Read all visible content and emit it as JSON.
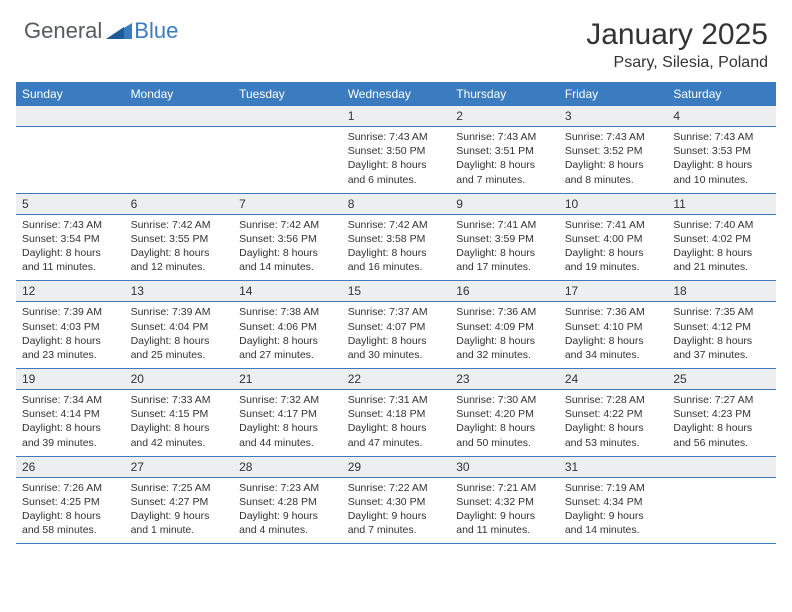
{
  "brand": {
    "part1": "General",
    "part2": "Blue"
  },
  "title": "January 2025",
  "location": "Psary, Silesia, Poland",
  "colors": {
    "header_bg": "#3b7bbf",
    "header_text": "#ffffff",
    "daynum_bg": "#eceeef",
    "text": "#333333",
    "border": "#3b7bbf",
    "page_bg": "#ffffff",
    "logo_gray": "#555b5f",
    "logo_blue": "#3b7bbf"
  },
  "weekdays": [
    "Sunday",
    "Monday",
    "Tuesday",
    "Wednesday",
    "Thursday",
    "Friday",
    "Saturday"
  ],
  "weeks": [
    [
      null,
      null,
      null,
      {
        "n": "1",
        "sr": "7:43 AM",
        "ss": "3:50 PM",
        "dl1": "8 hours",
        "dl2": "and 6 minutes."
      },
      {
        "n": "2",
        "sr": "7:43 AM",
        "ss": "3:51 PM",
        "dl1": "8 hours",
        "dl2": "and 7 minutes."
      },
      {
        "n": "3",
        "sr": "7:43 AM",
        "ss": "3:52 PM",
        "dl1": "8 hours",
        "dl2": "and 8 minutes."
      },
      {
        "n": "4",
        "sr": "7:43 AM",
        "ss": "3:53 PM",
        "dl1": "8 hours",
        "dl2": "and 10 minutes."
      }
    ],
    [
      {
        "n": "5",
        "sr": "7:43 AM",
        "ss": "3:54 PM",
        "dl1": "8 hours",
        "dl2": "and 11 minutes."
      },
      {
        "n": "6",
        "sr": "7:42 AM",
        "ss": "3:55 PM",
        "dl1": "8 hours",
        "dl2": "and 12 minutes."
      },
      {
        "n": "7",
        "sr": "7:42 AM",
        "ss": "3:56 PM",
        "dl1": "8 hours",
        "dl2": "and 14 minutes."
      },
      {
        "n": "8",
        "sr": "7:42 AM",
        "ss": "3:58 PM",
        "dl1": "8 hours",
        "dl2": "and 16 minutes."
      },
      {
        "n": "9",
        "sr": "7:41 AM",
        "ss": "3:59 PM",
        "dl1": "8 hours",
        "dl2": "and 17 minutes."
      },
      {
        "n": "10",
        "sr": "7:41 AM",
        "ss": "4:00 PM",
        "dl1": "8 hours",
        "dl2": "and 19 minutes."
      },
      {
        "n": "11",
        "sr": "7:40 AM",
        "ss": "4:02 PM",
        "dl1": "8 hours",
        "dl2": "and 21 minutes."
      }
    ],
    [
      {
        "n": "12",
        "sr": "7:39 AM",
        "ss": "4:03 PM",
        "dl1": "8 hours",
        "dl2": "and 23 minutes."
      },
      {
        "n": "13",
        "sr": "7:39 AM",
        "ss": "4:04 PM",
        "dl1": "8 hours",
        "dl2": "and 25 minutes."
      },
      {
        "n": "14",
        "sr": "7:38 AM",
        "ss": "4:06 PM",
        "dl1": "8 hours",
        "dl2": "and 27 minutes."
      },
      {
        "n": "15",
        "sr": "7:37 AM",
        "ss": "4:07 PM",
        "dl1": "8 hours",
        "dl2": "and 30 minutes."
      },
      {
        "n": "16",
        "sr": "7:36 AM",
        "ss": "4:09 PM",
        "dl1": "8 hours",
        "dl2": "and 32 minutes."
      },
      {
        "n": "17",
        "sr": "7:36 AM",
        "ss": "4:10 PM",
        "dl1": "8 hours",
        "dl2": "and 34 minutes."
      },
      {
        "n": "18",
        "sr": "7:35 AM",
        "ss": "4:12 PM",
        "dl1": "8 hours",
        "dl2": "and 37 minutes."
      }
    ],
    [
      {
        "n": "19",
        "sr": "7:34 AM",
        "ss": "4:14 PM",
        "dl1": "8 hours",
        "dl2": "and 39 minutes."
      },
      {
        "n": "20",
        "sr": "7:33 AM",
        "ss": "4:15 PM",
        "dl1": "8 hours",
        "dl2": "and 42 minutes."
      },
      {
        "n": "21",
        "sr": "7:32 AM",
        "ss": "4:17 PM",
        "dl1": "8 hours",
        "dl2": "and 44 minutes."
      },
      {
        "n": "22",
        "sr": "7:31 AM",
        "ss": "4:18 PM",
        "dl1": "8 hours",
        "dl2": "and 47 minutes."
      },
      {
        "n": "23",
        "sr": "7:30 AM",
        "ss": "4:20 PM",
        "dl1": "8 hours",
        "dl2": "and 50 minutes."
      },
      {
        "n": "24",
        "sr": "7:28 AM",
        "ss": "4:22 PM",
        "dl1": "8 hours",
        "dl2": "and 53 minutes."
      },
      {
        "n": "25",
        "sr": "7:27 AM",
        "ss": "4:23 PM",
        "dl1": "8 hours",
        "dl2": "and 56 minutes."
      }
    ],
    [
      {
        "n": "26",
        "sr": "7:26 AM",
        "ss": "4:25 PM",
        "dl1": "8 hours",
        "dl2": "and 58 minutes."
      },
      {
        "n": "27",
        "sr": "7:25 AM",
        "ss": "4:27 PM",
        "dl1": "9 hours",
        "dl2": "and 1 minute."
      },
      {
        "n": "28",
        "sr": "7:23 AM",
        "ss": "4:28 PM",
        "dl1": "9 hours",
        "dl2": "and 4 minutes."
      },
      {
        "n": "29",
        "sr": "7:22 AM",
        "ss": "4:30 PM",
        "dl1": "9 hours",
        "dl2": "and 7 minutes."
      },
      {
        "n": "30",
        "sr": "7:21 AM",
        "ss": "4:32 PM",
        "dl1": "9 hours",
        "dl2": "and 11 minutes."
      },
      {
        "n": "31",
        "sr": "7:19 AM",
        "ss": "4:34 PM",
        "dl1": "9 hours",
        "dl2": "and 14 minutes."
      },
      null
    ]
  ],
  "labels": {
    "sunrise": "Sunrise:",
    "sunset": "Sunset:",
    "daylight": "Daylight:"
  },
  "typography": {
    "title_fontsize": 30,
    "location_fontsize": 16,
    "weekday_fontsize": 12,
    "daynum_fontsize": 12,
    "cell_fontsize": 10.5
  }
}
